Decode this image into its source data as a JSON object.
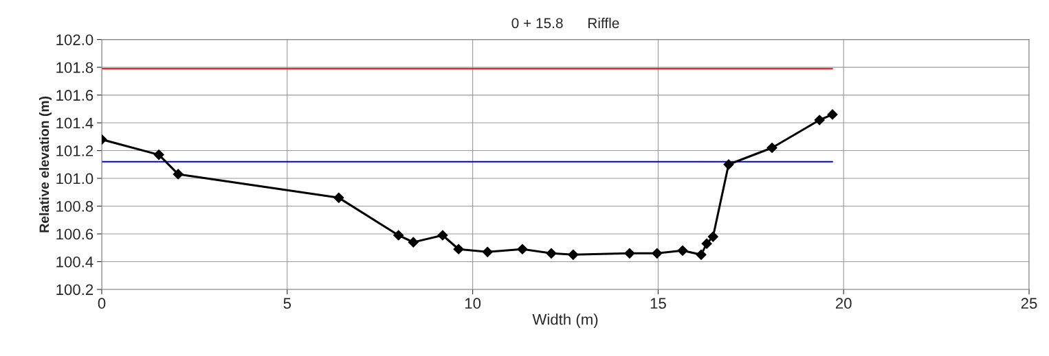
{
  "chart_data": {
    "type": "line",
    "title": "0 + 15.8      Riffle",
    "xlabel": "Width (m)",
    "ylabel": "Relative elevation (m)",
    "series": [
      {
        "color": "#ff0000",
        "x": [
          0,
          19.7
        ],
        "values": [
          101.79,
          101.79
        ],
        "marker": "none"
      },
      {
        "color": "#0000cc",
        "x": [
          0,
          19.7
        ],
        "values": [
          101.12,
          101.12
        ],
        "marker": "none"
      },
      {
        "color": "#000000",
        "marker": "diamond",
        "x": [
          0,
          1.54,
          2.06,
          6.39,
          8.0,
          8.4,
          9.19,
          9.62,
          10.4,
          11.34,
          12.12,
          12.71,
          14.23,
          14.97,
          15.66,
          16.16,
          16.31,
          16.48,
          16.9,
          18.07,
          19.35,
          19.7
        ],
        "values": [
          101.28,
          101.17,
          101.03,
          100.86,
          100.59,
          100.54,
          100.59,
          100.49,
          100.47,
          100.49,
          100.46,
          100.45,
          100.46,
          100.46,
          100.48,
          100.45,
          100.53,
          100.58,
          101.1,
          101.22,
          101.42,
          101.46
        ]
      }
    ],
    "xlim": [
      0,
      25
    ],
    "xticks": [
      0,
      5,
      10,
      15,
      20,
      25
    ],
    "ylim": [
      100.2,
      102.0
    ],
    "yticks": [
      {
        "value": 100.2,
        "label": "100.2"
      },
      {
        "value": 100.4,
        "label": "100.4"
      },
      {
        "value": 100.6,
        "label": "100.6"
      },
      {
        "value": 100.8,
        "label": "100.8"
      },
      {
        "value": 101.0,
        "label": "101.0"
      },
      {
        "value": 101.2,
        "label": "101.2"
      },
      {
        "value": 101.4,
        "label": "101.4"
      },
      {
        "value": 101.6,
        "label": "101.6"
      },
      {
        "value": 101.8,
        "label": "101.8"
      },
      {
        "value": 102.0,
        "label": "102.0"
      }
    ],
    "grid": true
  }
}
